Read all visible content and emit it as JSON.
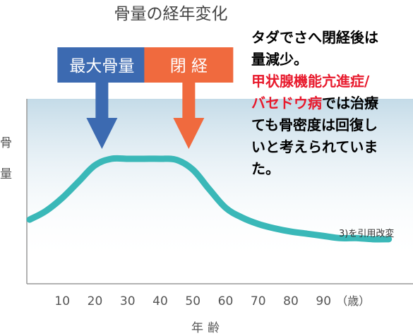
{
  "chart_data": {
    "type": "line",
    "title": "骨量の経年変化",
    "ylabel": "骨量",
    "xlabel": "年齢",
    "x_ticks": [
      "10",
      "20",
      "30",
      "40",
      "50",
      "60",
      "70",
      "80",
      "90"
    ],
    "x_unit": "（歳）",
    "xlim": [
      0,
      110
    ],
    "series": [
      {
        "values_description": "relative bone mass, arbitrary units 0-100",
        "x": [
          0,
          5,
          10,
          15,
          20,
          25,
          30,
          35,
          40,
          45,
          50,
          55,
          60,
          65,
          70,
          75,
          80,
          85,
          90,
          95,
          100,
          105,
          110
        ],
        "y": [
          22,
          30,
          42,
          57,
          72,
          78,
          78,
          78,
          78,
          77,
          68,
          50,
          33,
          24,
          18,
          14,
          11,
          9,
          7,
          5,
          5,
          4,
          4
        ],
        "color": "#3ab8b8"
      }
    ],
    "annotations": [
      {
        "label": "最大骨量",
        "x": 23,
        "color": "#3c6ab1"
      },
      {
        "label": "閉 経",
        "x": 47,
        "color": "#f06a3e"
      }
    ],
    "source_note": "3)を引用改変"
  },
  "overlay_text": {
    "line1": "タダでさへ閉経後は",
    "line2": "量減少。",
    "line3_red": "甲状腺機能亢進症/",
    "line4_red": "バセドウ病",
    "line4_rest": "では治療",
    "line5": "ても骨密度は回復し",
    "line6": "いと考えられていま",
    "line7": "た。"
  },
  "colors": {
    "curve": "#3ab8b8",
    "peak_arrow": "#3c6ab1",
    "menopause_arrow": "#f06a3e",
    "shade": "#cfe3ee",
    "highlight_text": "#e8192c"
  }
}
